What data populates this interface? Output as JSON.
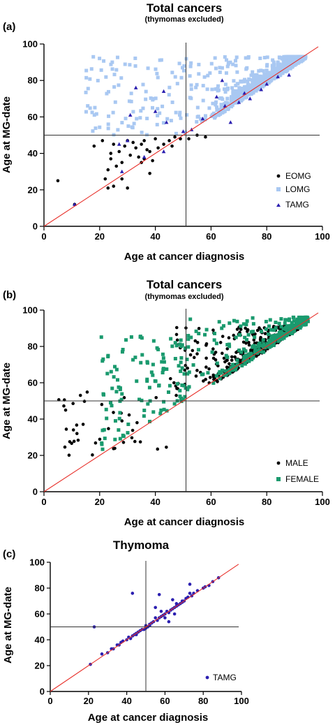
{
  "panels": [
    {
      "letter": "(a)",
      "title": "Total cancers",
      "subtitle": "(thymomas excluded)",
      "ylabel": "Age at MG-date",
      "xlabel": "Age at cancer diagnosis",
      "legend": [
        "EOMG",
        "LOMG",
        "TAMG"
      ]
    },
    {
      "letter": "(b)",
      "title": "Total cancers",
      "subtitle": "(thymomas excluded)",
      "ylabel": "Age at MG-date",
      "xlabel": "Age at cancer diagnosis",
      "legend": [
        "MALE",
        "FEMALE"
      ]
    },
    {
      "letter": "(c)",
      "title": "Thymoma",
      "subtitle": "",
      "ylabel": "Age at MG-date",
      "xlabel": "Age at cancer diagnosis",
      "legend": [
        "TAMG"
      ]
    }
  ],
  "colors": {
    "eomg": "#000000",
    "lomg": "#a9c8f2",
    "tamg": "#2b1fb0",
    "male": "#000000",
    "female": "#1a9a6e",
    "identity_line": "#e8302a",
    "reference_line": "#333333"
  },
  "chart_data": [
    {
      "type": "scatter",
      "title": "Total cancers",
      "subtitle": "(thymomas excluded)",
      "xlabel": "Age at cancer diagnosis",
      "ylabel": "Age at MG-date",
      "xlim": [
        0,
        100
      ],
      "ylim": [
        0,
        100
      ],
      "xticks": [
        0,
        20,
        40,
        60,
        80,
        100
      ],
      "yticks": [
        0,
        20,
        40,
        60,
        80,
        100
      ],
      "reference_lines": {
        "x": 51,
        "y": 50,
        "identity": true
      },
      "legend_position": "bottom-right",
      "series": [
        {
          "name": "EOMG",
          "marker": "circle",
          "color": "#000000",
          "points": [
            [
              5,
              25
            ],
            [
              11,
              12
            ],
            [
              18,
              44
            ],
            [
              21,
              47
            ],
            [
              22,
              26
            ],
            [
              23,
              21
            ],
            [
              24,
              37
            ],
            [
              25,
              22
            ],
            [
              25,
              45
            ],
            [
              26,
              33
            ],
            [
              27,
              41
            ],
            [
              28,
              26
            ],
            [
              29,
              44
            ],
            [
              30,
              47
            ],
            [
              30,
              21
            ],
            [
              31,
              39
            ],
            [
              33,
              43
            ],
            [
              34,
              38
            ],
            [
              35,
              35
            ],
            [
              35,
              45
            ],
            [
              36,
              37
            ],
            [
              37,
              42
            ],
            [
              38,
              29
            ],
            [
              38,
              41
            ],
            [
              40,
              48
            ],
            [
              41,
              43
            ],
            [
              43,
              45
            ],
            [
              45,
              47
            ],
            [
              47,
              49
            ],
            [
              49,
              48
            ],
            [
              52,
              48
            ],
            [
              55,
              50
            ],
            [
              58,
              49
            ],
            [
              46,
              44
            ],
            [
              32,
              46
            ],
            [
              24,
              40
            ],
            [
              23,
              31
            ],
            [
              39,
              36
            ],
            [
              36,
              47
            ],
            [
              28,
              35
            ]
          ]
        },
        {
          "name": "LOMG",
          "marker": "square",
          "color": "#a9c8f2",
          "count": 850,
          "x_range": [
            15,
            94
          ],
          "y_range": [
            50,
            93
          ]
        },
        {
          "name": "TAMG",
          "marker": "triangle",
          "color": "#2b1fb0",
          "points": [
            [
              11,
              12
            ],
            [
              28,
              30
            ],
            [
              30,
              47
            ],
            [
              33,
              76
            ],
            [
              31,
              61
            ],
            [
              36,
              38
            ],
            [
              43,
              41
            ],
            [
              40,
              63
            ],
            [
              44,
              57
            ],
            [
              50,
              52
            ],
            [
              53,
              53
            ],
            [
              57,
              59
            ],
            [
              62,
              71
            ],
            [
              64,
              80
            ],
            [
              65,
              66
            ],
            [
              67,
              57
            ],
            [
              70,
              68
            ],
            [
              72,
              73
            ],
            [
              74,
              70
            ],
            [
              78,
              75
            ],
            [
              80,
              78
            ],
            [
              84,
              82
            ],
            [
              88,
              83
            ],
            [
              43,
              74
            ],
            [
              27,
              45
            ]
          ]
        }
      ]
    },
    {
      "type": "scatter",
      "title": "Total cancers",
      "subtitle": "(thymomas excluded)",
      "xlabel": "Age at cancer diagnosis",
      "ylabel": "Age at MG-date",
      "xlim": [
        0,
        100
      ],
      "ylim": [
        0,
        100
      ],
      "xticks": [
        0,
        20,
        40,
        60,
        80,
        100
      ],
      "yticks": [
        0,
        20,
        40,
        60,
        80,
        100
      ],
      "reference_lines": {
        "x": 51,
        "y": 50,
        "identity": true
      },
      "legend_position": "bottom-right",
      "series": [
        {
          "name": "MALE",
          "marker": "circle",
          "color": "#000000",
          "count": 480,
          "x_range": [
            5,
            92
          ],
          "y_range": [
            12,
            91
          ]
        },
        {
          "name": "FEMALE",
          "marker": "square",
          "color": "#1a9a6e",
          "count": 420,
          "x_range": [
            20,
            95
          ],
          "y_range": [
            21,
            96
          ]
        }
      ]
    },
    {
      "type": "scatter",
      "title": "Thymoma",
      "xlabel": "Age at cancer diagnosis",
      "ylabel": "Age at MG-date",
      "xlim": [
        0,
        100
      ],
      "ylim": [
        0,
        100
      ],
      "xticks": [
        0,
        20,
        40,
        60,
        80,
        100
      ],
      "yticks": [
        0,
        20,
        40,
        60,
        80,
        100
      ],
      "reference_lines": {
        "x": 50,
        "y": 50,
        "identity": true
      },
      "legend_position": "bottom-right",
      "series": [
        {
          "name": "TAMG",
          "marker": "circle",
          "color": "#2b1fb0",
          "points": [
            [
              21,
              21
            ],
            [
              23,
              50
            ],
            [
              27,
              29
            ],
            [
              30,
              30
            ],
            [
              32,
              33
            ],
            [
              33,
              33
            ],
            [
              35,
              36
            ],
            [
              36,
              36
            ],
            [
              37,
              38
            ],
            [
              38,
              39
            ],
            [
              40,
              40
            ],
            [
              41,
              42
            ],
            [
              42,
              41
            ],
            [
              43,
              76
            ],
            [
              43,
              43
            ],
            [
              44,
              44
            ],
            [
              45,
              45
            ],
            [
              46,
              46
            ],
            [
              47,
              47
            ],
            [
              48,
              48
            ],
            [
              49,
              48
            ],
            [
              50,
              49
            ],
            [
              50,
              51
            ],
            [
              51,
              50
            ],
            [
              52,
              52
            ],
            [
              53,
              53
            ],
            [
              54,
              54
            ],
            [
              55,
              57
            ],
            [
              55,
              65
            ],
            [
              56,
              55
            ],
            [
              57,
              75
            ],
            [
              57,
              57
            ],
            [
              58,
              58
            ],
            [
              59,
              59
            ],
            [
              60,
              57
            ],
            [
              60,
              60
            ],
            [
              61,
              62
            ],
            [
              62,
              61
            ],
            [
              62,
              54
            ],
            [
              63,
              63
            ],
            [
              64,
              64
            ],
            [
              64,
              71
            ],
            [
              65,
              65
            ],
            [
              66,
              66
            ],
            [
              67,
              67
            ],
            [
              68,
              68
            ],
            [
              69,
              69
            ],
            [
              70,
              70
            ],
            [
              71,
              72
            ],
            [
              72,
              73
            ],
            [
              73,
              76
            ],
            [
              73,
              83
            ],
            [
              74,
              74
            ],
            [
              75,
              76
            ],
            [
              77,
              78
            ],
            [
              80,
              80
            ],
            [
              81,
              81
            ],
            [
              83,
              82
            ],
            [
              85,
              85
            ],
            [
              88,
              88
            ],
            [
              65,
              60
            ],
            [
              69,
              70
            ],
            [
              66,
              68
            ],
            [
              58,
              62
            ],
            [
              45,
              44
            ],
            [
              52,
              51
            ]
          ]
        }
      ]
    }
  ]
}
